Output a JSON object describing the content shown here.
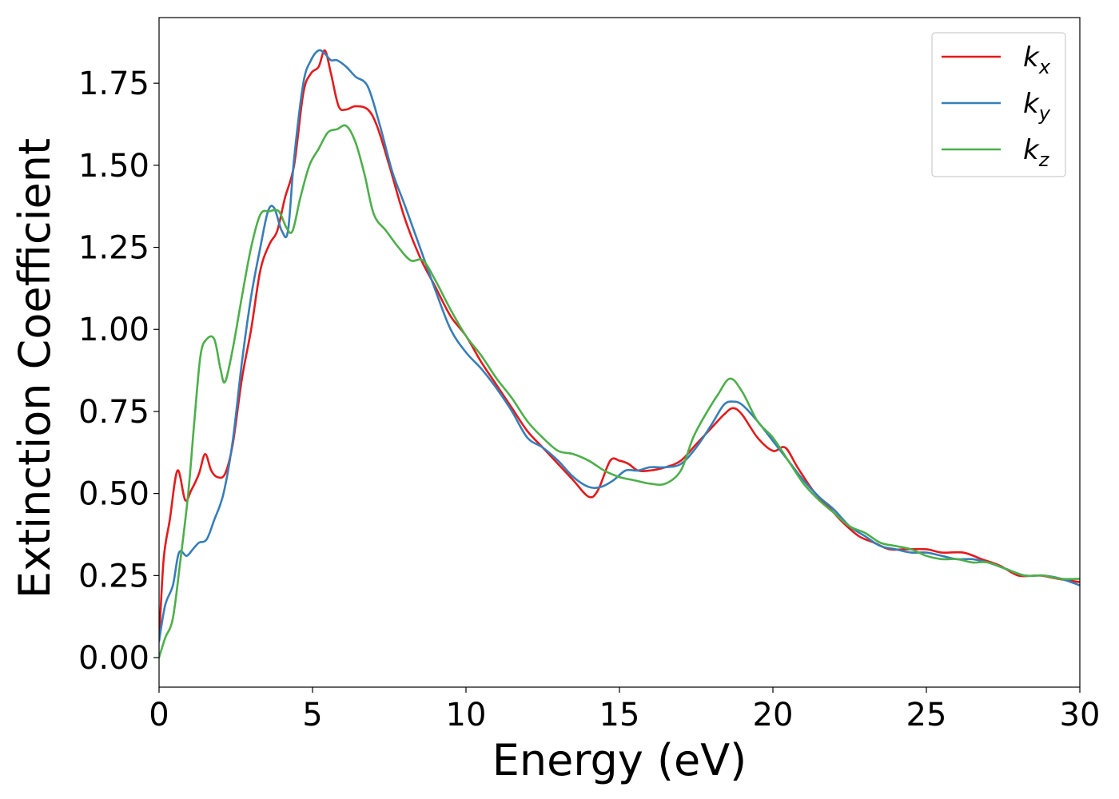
{
  "chart_data": {
    "type": "line",
    "title": "",
    "xlabel": "Energy (eV)",
    "ylabel": "Extinction Coefficient",
    "xlim": [
      0,
      30
    ],
    "ylim": [
      -0.09,
      1.95
    ],
    "xticks": [
      0,
      5,
      10,
      15,
      20,
      25,
      30
    ],
    "xtick_labels": [
      "0",
      "5",
      "10",
      "15",
      "20",
      "25",
      "30"
    ],
    "yticks": [
      0.0,
      0.25,
      0.5,
      0.75,
      1.0,
      1.25,
      1.5,
      1.75
    ],
    "ytick_labels": [
      "0.00",
      "0.25",
      "0.50",
      "0.75",
      "1.00",
      "1.25",
      "1.50",
      "1.75"
    ],
    "grid": false,
    "legend_position": "top-right",
    "series": [
      {
        "name": "k",
        "subscript": "x",
        "color": "#e41a1c",
        "points": [
          [
            0,
            0.05
          ],
          [
            0.15,
            0.3
          ],
          [
            0.35,
            0.42
          ],
          [
            0.6,
            0.57
          ],
          [
            0.85,
            0.48
          ],
          [
            1.05,
            0.51
          ],
          [
            1.3,
            0.56
          ],
          [
            1.5,
            0.62
          ],
          [
            1.7,
            0.57
          ],
          [
            1.9,
            0.55
          ],
          [
            2.15,
            0.56
          ],
          [
            2.4,
            0.65
          ],
          [
            2.7,
            0.85
          ],
          [
            3.0,
            1.0
          ],
          [
            3.3,
            1.18
          ],
          [
            3.6,
            1.26
          ],
          [
            3.85,
            1.3
          ],
          [
            4.1,
            1.4
          ],
          [
            4.4,
            1.5
          ],
          [
            4.7,
            1.72
          ],
          [
            4.95,
            1.78
          ],
          [
            5.2,
            1.8
          ],
          [
            5.4,
            1.85
          ],
          [
            5.6,
            1.78
          ],
          [
            5.85,
            1.68
          ],
          [
            6.1,
            1.67
          ],
          [
            6.4,
            1.68
          ],
          [
            6.8,
            1.67
          ],
          [
            7.1,
            1.62
          ],
          [
            7.5,
            1.5
          ],
          [
            8.0,
            1.34
          ],
          [
            8.5,
            1.22
          ],
          [
            9.0,
            1.13
          ],
          [
            9.5,
            1.04
          ],
          [
            10.0,
            0.98
          ],
          [
            10.5,
            0.9
          ],
          [
            11.0,
            0.83
          ],
          [
            11.5,
            0.76
          ],
          [
            12.0,
            0.69
          ],
          [
            12.5,
            0.64
          ],
          [
            13.0,
            0.59
          ],
          [
            13.5,
            0.54
          ],
          [
            14.0,
            0.49
          ],
          [
            14.3,
            0.51
          ],
          [
            14.7,
            0.6
          ],
          [
            15.0,
            0.6
          ],
          [
            15.3,
            0.59
          ],
          [
            15.6,
            0.57
          ],
          [
            16.0,
            0.57
          ],
          [
            16.5,
            0.58
          ],
          [
            17.0,
            0.6
          ],
          [
            17.5,
            0.65
          ],
          [
            18.0,
            0.7
          ],
          [
            18.4,
            0.74
          ],
          [
            18.7,
            0.76
          ],
          [
            19.0,
            0.74
          ],
          [
            19.5,
            0.67
          ],
          [
            20.0,
            0.63
          ],
          [
            20.4,
            0.64
          ],
          [
            20.8,
            0.58
          ],
          [
            21.3,
            0.51
          ],
          [
            21.8,
            0.46
          ],
          [
            22.3,
            0.41
          ],
          [
            22.8,
            0.37
          ],
          [
            23.3,
            0.35
          ],
          [
            23.8,
            0.33
          ],
          [
            24.3,
            0.33
          ],
          [
            25.0,
            0.33
          ],
          [
            25.5,
            0.32
          ],
          [
            26.2,
            0.32
          ],
          [
            26.8,
            0.3
          ],
          [
            27.4,
            0.28
          ],
          [
            28.0,
            0.25
          ],
          [
            28.7,
            0.25
          ],
          [
            29.3,
            0.24
          ],
          [
            30.0,
            0.23
          ]
        ]
      },
      {
        "name": "k",
        "subscript": "y",
        "color": "#377eb8",
        "points": [
          [
            0,
            0.05
          ],
          [
            0.2,
            0.16
          ],
          [
            0.45,
            0.22
          ],
          [
            0.65,
            0.32
          ],
          [
            0.9,
            0.31
          ],
          [
            1.1,
            0.33
          ],
          [
            1.3,
            0.35
          ],
          [
            1.55,
            0.36
          ],
          [
            1.8,
            0.42
          ],
          [
            2.1,
            0.5
          ],
          [
            2.4,
            0.66
          ],
          [
            2.7,
            0.9
          ],
          [
            3.0,
            1.1
          ],
          [
            3.3,
            1.25
          ],
          [
            3.55,
            1.36
          ],
          [
            3.75,
            1.37
          ],
          [
            4.0,
            1.3
          ],
          [
            4.2,
            1.3
          ],
          [
            4.4,
            1.52
          ],
          [
            4.7,
            1.75
          ],
          [
            4.95,
            1.82
          ],
          [
            5.2,
            1.85
          ],
          [
            5.4,
            1.84
          ],
          [
            5.6,
            1.82
          ],
          [
            5.8,
            1.82
          ],
          [
            6.1,
            1.8
          ],
          [
            6.4,
            1.77
          ],
          [
            6.8,
            1.74
          ],
          [
            7.2,
            1.62
          ],
          [
            7.6,
            1.48
          ],
          [
            8.0,
            1.38
          ],
          [
            8.5,
            1.25
          ],
          [
            9.0,
            1.12
          ],
          [
            9.5,
            1.0
          ],
          [
            10.0,
            0.93
          ],
          [
            10.5,
            0.88
          ],
          [
            11.0,
            0.82
          ],
          [
            11.5,
            0.75
          ],
          [
            12.0,
            0.67
          ],
          [
            12.5,
            0.64
          ],
          [
            13.0,
            0.6
          ],
          [
            13.5,
            0.55
          ],
          [
            14.0,
            0.52
          ],
          [
            14.4,
            0.52
          ],
          [
            14.8,
            0.54
          ],
          [
            15.2,
            0.57
          ],
          [
            15.6,
            0.57
          ],
          [
            16.0,
            0.58
          ],
          [
            16.5,
            0.58
          ],
          [
            17.0,
            0.59
          ],
          [
            17.5,
            0.64
          ],
          [
            18.0,
            0.71
          ],
          [
            18.4,
            0.77
          ],
          [
            18.7,
            0.78
          ],
          [
            19.0,
            0.77
          ],
          [
            19.5,
            0.72
          ],
          [
            20.0,
            0.66
          ],
          [
            20.5,
            0.6
          ],
          [
            21.0,
            0.54
          ],
          [
            21.5,
            0.49
          ],
          [
            22.0,
            0.45
          ],
          [
            22.5,
            0.4
          ],
          [
            23.0,
            0.37
          ],
          [
            23.5,
            0.34
          ],
          [
            24.0,
            0.33
          ],
          [
            24.5,
            0.32
          ],
          [
            25.0,
            0.32
          ],
          [
            25.5,
            0.31
          ],
          [
            26.0,
            0.3
          ],
          [
            26.5,
            0.3
          ],
          [
            27.0,
            0.29
          ],
          [
            27.6,
            0.27
          ],
          [
            28.2,
            0.25
          ],
          [
            28.8,
            0.25
          ],
          [
            29.4,
            0.24
          ],
          [
            30.0,
            0.22
          ]
        ]
      },
      {
        "name": "k",
        "subscript": "z",
        "color": "#4daf4a",
        "points": [
          [
            0,
            0.0
          ],
          [
            0.2,
            0.06
          ],
          [
            0.45,
            0.12
          ],
          [
            0.7,
            0.3
          ],
          [
            0.95,
            0.5
          ],
          [
            1.15,
            0.72
          ],
          [
            1.35,
            0.92
          ],
          [
            1.55,
            0.97
          ],
          [
            1.8,
            0.97
          ],
          [
            2.0,
            0.88
          ],
          [
            2.15,
            0.84
          ],
          [
            2.4,
            0.94
          ],
          [
            2.7,
            1.1
          ],
          [
            3.0,
            1.25
          ],
          [
            3.3,
            1.35
          ],
          [
            3.6,
            1.36
          ],
          [
            3.9,
            1.36
          ],
          [
            4.15,
            1.31
          ],
          [
            4.35,
            1.3
          ],
          [
            4.6,
            1.4
          ],
          [
            4.9,
            1.5
          ],
          [
            5.2,
            1.55
          ],
          [
            5.5,
            1.6
          ],
          [
            5.8,
            1.61
          ],
          [
            6.1,
            1.62
          ],
          [
            6.4,
            1.57
          ],
          [
            6.7,
            1.47
          ],
          [
            7.0,
            1.35
          ],
          [
            7.4,
            1.3
          ],
          [
            7.8,
            1.25
          ],
          [
            8.2,
            1.21
          ],
          [
            8.6,
            1.21
          ],
          [
            9.0,
            1.15
          ],
          [
            9.5,
            1.06
          ],
          [
            10.0,
            0.98
          ],
          [
            10.5,
            0.92
          ],
          [
            11.0,
            0.85
          ],
          [
            11.5,
            0.79
          ],
          [
            12.0,
            0.72
          ],
          [
            12.5,
            0.67
          ],
          [
            13.0,
            0.63
          ],
          [
            13.5,
            0.62
          ],
          [
            14.0,
            0.6
          ],
          [
            14.5,
            0.57
          ],
          [
            15.0,
            0.55
          ],
          [
            15.5,
            0.54
          ],
          [
            16.0,
            0.53
          ],
          [
            16.5,
            0.53
          ],
          [
            17.0,
            0.57
          ],
          [
            17.4,
            0.67
          ],
          [
            17.8,
            0.74
          ],
          [
            18.2,
            0.8
          ],
          [
            18.6,
            0.85
          ],
          [
            19.0,
            0.81
          ],
          [
            19.5,
            0.72
          ],
          [
            20.0,
            0.67
          ],
          [
            20.5,
            0.6
          ],
          [
            21.0,
            0.53
          ],
          [
            21.5,
            0.48
          ],
          [
            22.0,
            0.44
          ],
          [
            22.5,
            0.4
          ],
          [
            23.0,
            0.38
          ],
          [
            23.5,
            0.35
          ],
          [
            24.0,
            0.34
          ],
          [
            24.5,
            0.33
          ],
          [
            25.0,
            0.31
          ],
          [
            25.5,
            0.3
          ],
          [
            26.0,
            0.3
          ],
          [
            26.5,
            0.29
          ],
          [
            27.0,
            0.29
          ],
          [
            27.6,
            0.27
          ],
          [
            28.2,
            0.25
          ],
          [
            28.8,
            0.25
          ],
          [
            29.4,
            0.24
          ],
          [
            30.0,
            0.24
          ]
        ]
      }
    ]
  }
}
